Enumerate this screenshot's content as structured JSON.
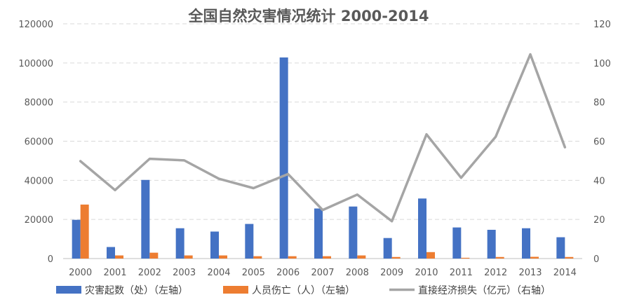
{
  "chart_data": {
    "type": "bar",
    "title": "全国自然灾害情况统计 2000-2014",
    "categories": [
      "2000",
      "2001",
      "2002",
      "2003",
      "2004",
      "2005",
      "2006",
      "2007",
      "2008",
      "2009",
      "2010",
      "2011",
      "2012",
      "2013",
      "2014"
    ],
    "y_left": {
      "min": 0,
      "max": 120000,
      "step": 20000,
      "ticks": [
        "0",
        "20000",
        "40000",
        "60000",
        "80000",
        "100000",
        "120000"
      ]
    },
    "y_right": {
      "min": 0,
      "max": 120,
      "step": 20,
      "ticks": [
        "0",
        "20",
        "40",
        "60",
        "80",
        "100",
        "120"
      ]
    },
    "grid": true,
    "legend_position": "bottom",
    "series": [
      {
        "name": "灾害起数（处）（左轴）",
        "type": "bar",
        "axis": "left",
        "color": "#4472C4",
        "values": [
          19800,
          5900,
          40200,
          15500,
          13800,
          17700,
          102800,
          25600,
          26600,
          10500,
          30700,
          15900,
          14700,
          15500,
          10900
        ]
      },
      {
        "name": "人员伤亡（人）（左轴）",
        "type": "bar",
        "axis": "left",
        "color": "#ED7D31",
        "values": [
          27600,
          1600,
          3000,
          1600,
          1600,
          1200,
          1200,
          1200,
          1600,
          800,
          3300,
          400,
          800,
          900,
          800
        ]
      },
      {
        "name": "直接经济损失（亿元）（右轴）",
        "type": "line",
        "axis": "right",
        "color": "#A5A5A5",
        "values": [
          49.8,
          35.0,
          51.0,
          50.2,
          40.8,
          36.0,
          43.2,
          24.8,
          32.7,
          19.1,
          63.5,
          41.3,
          62.3,
          104.4,
          56.9
        ]
      }
    ]
  }
}
